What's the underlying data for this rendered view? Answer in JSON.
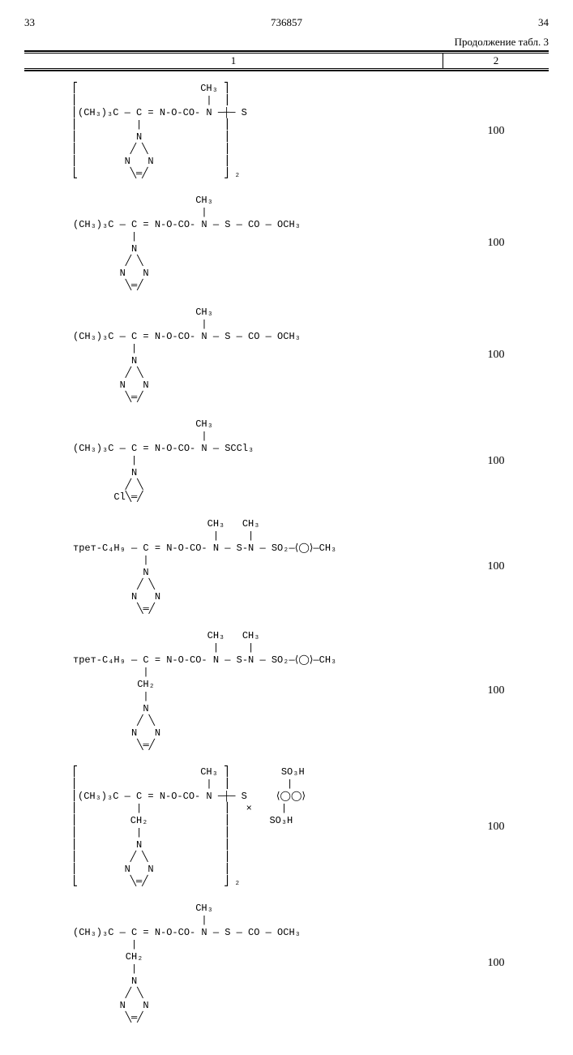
{
  "header": {
    "page_left": "33",
    "doc_number": "736857",
    "page_right": "34"
  },
  "continuation": "Продолжение табл. 3",
  "columns": {
    "c1": "1",
    "c2": "2"
  },
  "rows": [
    {
      "structure": "⎡                     CH₃ ⎤\n⎢                      |  ⎥\n⎢(CH₃)₃C — C = N-O-CO- N ─┼─ S\n⎢          |              ⎥\n⎢          N              ⎥\n⎢         ╱ ╲             ⎥\n⎢        N   N            ⎥\n⎣         ╲═╱             ⎦ ₂",
      "value": "100"
    },
    {
      "structure": "                     CH₃\n                      |\n(CH₃)₃C — C = N-O-CO- N — S — CO — OCH₃\n          |\n          N\n         ╱ ╲\n        N   N\n         ╲═╱",
      "value": "100"
    },
    {
      "structure": "                     CH₃\n                      |\n(CH₃)₃C — C = N-O-CO- N — S — CO — OCH₃\n          |\n          N\n         ╱ ╲\n        N   N\n         ╲═╱",
      "value": "100"
    },
    {
      "structure": "                     CH₃\n                      |\n(CH₃)₃C — C = N-O-CO- N — SCCl₃\n          |\n          N\n         ╱ ╲\n       Cl╲═╱",
      "value": "100"
    },
    {
      "structure": "                       CH₃   CH₃\n                        |     |\nтрет-C₄H₉ — C = N-O-CO- N — S-N — SO₂—⟨◯⟩—CH₃\n            |\n            N\n           ╱ ╲\n          N   N\n           ╲═╱",
      "value": "100"
    },
    {
      "structure": "                       CH₃   CH₃\n                        |     |\nтрет-C₄H₉ — C = N-O-CO- N — S-N — SO₂—⟨◯⟩—CH₃\n            |\n           CH₂\n            |\n            N\n           ╱ ╲\n          N   N\n           ╲═╱",
      "value": "100"
    },
    {
      "structure": "⎡                     CH₃ ⎤         SO₃H\n⎢                      |  ⎥          |\n⎢(CH₃)₃C — C = N-O-CO- N ─┼─ S     ⟨◯◯⟩\n⎢          |              ⎥   ×     |\n⎢         CH₂             ⎥       SO₃H\n⎢          |              ⎥\n⎢          N              ⎥\n⎢         ╱ ╲             ⎥\n⎢        N   N            ⎥\n⎣         ╲═╱             ⎦ ₂",
      "value": "100"
    },
    {
      "structure": "                     CH₃\n                      |\n(CH₃)₃C — C = N-O-CO- N — S — CO — OCH₃\n          |\n         CH₂\n          |\n          N\n         ╱ ╲\n        N   N\n         ╲═╱",
      "value": "100"
    }
  ]
}
